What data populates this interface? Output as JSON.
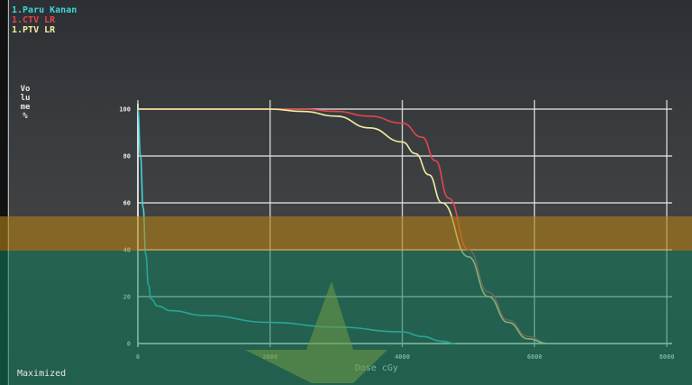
{
  "status_text": "Maximized",
  "chart_data": {
    "type": "line",
    "title": "",
    "xlabel": "Dose cGy",
    "ylabel": "Volume %",
    "xlim": [
      0,
      8000
    ],
    "ylim": [
      0,
      100
    ],
    "grid": true,
    "legend_position": "top-left",
    "x_ticks": [
      0,
      2000,
      4000,
      6000,
      8000
    ],
    "y_ticks": [
      0,
      20,
      40,
      60,
      80,
      100
    ],
    "series": [
      {
        "name": "1.Paru Kanan",
        "color": "#3fd6d6",
        "x": [
          0,
          40,
          80,
          120,
          160,
          200,
          300,
          500,
          1000,
          2000,
          3000,
          4000,
          4300,
          4600,
          4800
        ],
        "y": [
          100,
          80,
          58,
          38,
          25,
          19,
          16,
          14,
          12,
          9,
          7,
          5,
          3,
          1,
          0
        ]
      },
      {
        "name": "1.CTV LR",
        "color": "#e8434b",
        "x": [
          0,
          2000,
          2500,
          3000,
          3500,
          4000,
          4300,
          4500,
          4700,
          5000,
          5300,
          5600,
          5900,
          6200
        ],
        "y": [
          100,
          100,
          100,
          99,
          97,
          94,
          88,
          78,
          62,
          40,
          22,
          10,
          3,
          0
        ]
      },
      {
        "name": "1.PTV LR",
        "color": "#f1ee9f",
        "x": [
          0,
          2000,
          2500,
          3000,
          3500,
          4000,
          4200,
          4400,
          4600,
          5000,
          5300,
          5600,
          5900,
          6200
        ],
        "y": [
          100,
          100,
          99,
          97,
          92,
          86,
          81,
          72,
          60,
          37,
          20,
          9,
          2,
          0
        ]
      }
    ]
  }
}
